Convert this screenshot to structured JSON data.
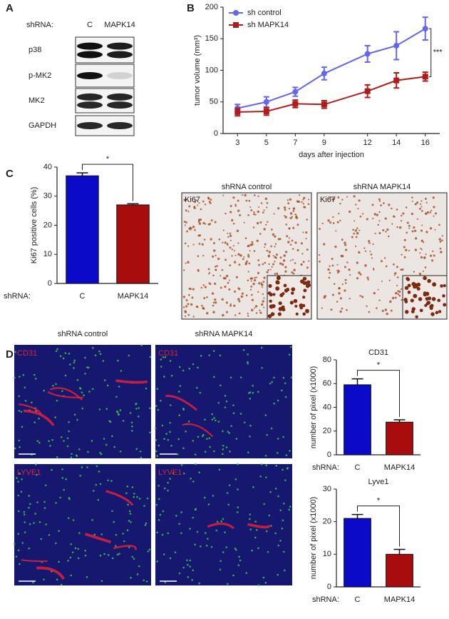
{
  "panels": {
    "a": "A",
    "b": "B",
    "c": "C",
    "d": "D"
  },
  "blot": {
    "row_label": "shRNA:",
    "lanes": [
      "C",
      "MAPK14"
    ],
    "proteins": [
      "p38",
      "p-MK2",
      "MK2",
      "GAPDH"
    ]
  },
  "ki67": {
    "titles": [
      "shRNA control",
      "shRNA MAPK14"
    ],
    "stain": "Ki67"
  },
  "fluorescence": {
    "titles": [
      "shRNA control",
      "shRNA MAPK14"
    ],
    "stains": [
      "CD31",
      "LYVE1"
    ]
  },
  "chart_data": [
    {
      "type": "line",
      "x": [
        3,
        5,
        7,
        9,
        12,
        14,
        16
      ],
      "xlim": [
        2,
        17
      ],
      "xticks": [
        3,
        5,
        7,
        9,
        12,
        14,
        16
      ],
      "ylim": [
        0,
        200
      ],
      "yticks": [
        0,
        50,
        100,
        150,
        200
      ],
      "x_label": "days after injection",
      "y_label": "tumor volume (mm³)",
      "annotation": "***",
      "legend": "upper left",
      "series": [
        {
          "name": "sh control",
          "color": "#6565ee",
          "marker": "circle",
          "values": [
            40,
            50,
            66,
            95,
            126,
            139,
            166
          ],
          "errors": [
            6,
            8,
            7,
            10,
            13,
            22,
            18
          ]
        },
        {
          "name": "sh MAPK14",
          "color": "#b01c1c",
          "marker": "square",
          "values": [
            34,
            35,
            47,
            46,
            67,
            84,
            90
          ],
          "errors": [
            6,
            6,
            6,
            6,
            10,
            12,
            7
          ]
        }
      ]
    },
    {
      "type": "bar",
      "categories": [
        "C",
        "MAPK14"
      ],
      "category_prefix": "shRNA:",
      "values": [
        37,
        27
      ],
      "errors": [
        1,
        0.4
      ],
      "colors": [
        "#0a0ac8",
        "#a80c0c"
      ],
      "ylim": [
        0,
        40
      ],
      "yticks": [
        0,
        10,
        20,
        30,
        40
      ],
      "y_label": "Ki67 positive cells (%)",
      "annotation": "*"
    },
    {
      "type": "bar",
      "title": "CD31",
      "categories": [
        "C",
        "MAPK14"
      ],
      "category_prefix": "shRNA:",
      "values": [
        59,
        27.5
      ],
      "errors": [
        5,
        2
      ],
      "colors": [
        "#0a0ac8",
        "#a80c0c"
      ],
      "ylim": [
        0,
        80
      ],
      "yticks": [
        0,
        20,
        40,
        60,
        80
      ],
      "y_label": "number of pixel (x1000)",
      "annotation": "*"
    },
    {
      "type": "bar",
      "title": "Lyve1",
      "categories": [
        "C",
        "MAPK14"
      ],
      "category_prefix": "shRNA:",
      "values": [
        21,
        10
      ],
      "errors": [
        1.2,
        1.5
      ],
      "colors": [
        "#0a0ac8",
        "#a80c0c"
      ],
      "ylim": [
        0,
        30
      ],
      "yticks": [
        0,
        10,
        20,
        30
      ],
      "y_label": "number of pixel (x1000)",
      "annotation": "*"
    }
  ]
}
